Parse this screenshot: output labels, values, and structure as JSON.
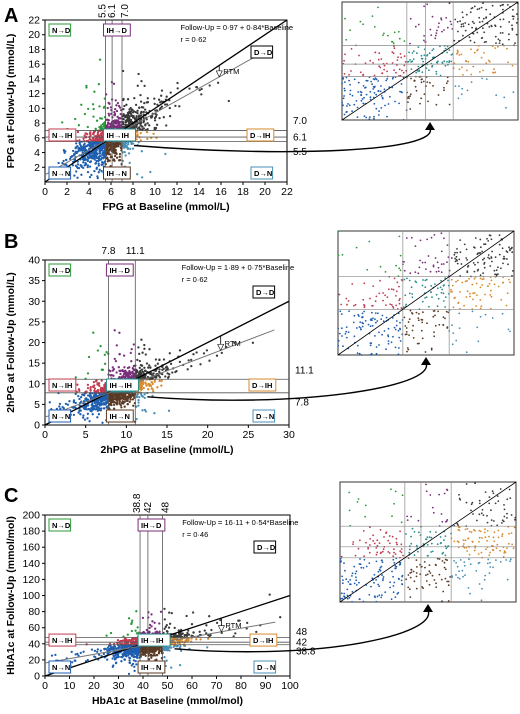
{
  "palette": {
    "N_N": "#1f5fb0",
    "N_IH": "#c23b50",
    "IH_IH": "#2a8c8c",
    "IH_N": "#5a3a25",
    "N_D": "#2b9a3a",
    "IH_D": "#7a2f7a",
    "D_IH": "#d88a2c",
    "D_N": "#4a8fb5",
    "D_D": "#3a3a3a"
  },
  "panels": [
    {
      "letter": "A",
      "equation": "Follow-Up = 0·97 + 0·84*Baseline",
      "r": "r = 0·62",
      "rtm": "RTM",
      "xlabel": "FPG at Baseline (mmol/L)",
      "ylabel": "FPG at Follow-Up (mmol/L)",
      "thresholds": [
        "5.5",
        "6.1",
        "7.0"
      ],
      "boxes": {
        "N_D": "N→D",
        "IH_D": "IH→D",
        "D_D": "D→D",
        "N_IH": "N→IH",
        "IH_IH": "IH→IH",
        "D_IH": "D→IH",
        "N_N": "N→N",
        "IH_N": "IH→N",
        "D_N": "D→N"
      }
    },
    {
      "letter": "B",
      "equation": "Follow-Up = 1·89 + 0·75*Baseline",
      "r": "r = 0·62",
      "rtm": "RTM",
      "xlabel": "2hPG at Baseline (mmol/L)",
      "ylabel": "2hPG at Follow-Up (mmol/L)",
      "thresholds": [
        "7.8",
        "11.1"
      ],
      "boxes": {
        "N_D": "N→D",
        "IH_D": "IH→D",
        "D_D": "D→D",
        "N_IH": "N→IH",
        "IH_IH": "IH→IH",
        "D_IH": "D→IH",
        "N_N": "N→N",
        "IH_N": "IH→N",
        "D_N": "D→N"
      }
    },
    {
      "letter": "C",
      "equation": "Follow-Up = 16·11 + 0·54*Baseline",
      "r": "r = 0·46",
      "rtm": "RTM",
      "xlabel": "HbA1c at Baseline (mmol/mol)",
      "ylabel": "HbA1c at Follow-Up (mmol/mol)",
      "thresholds": [
        "38.8",
        "42",
        "48"
      ],
      "boxes": {
        "N_D": "N→D",
        "IH_D": "IH→D",
        "D_D": "D→D",
        "N_IH": "N→IH",
        "IH_IH": "IH→IH",
        "D_IH": "D→IH",
        "N_N": "N→N",
        "IH_N": "IH→N",
        "D_N": "D→N"
      }
    }
  ],
  "chart_data": [
    {
      "type": "scatter",
      "title": "",
      "xlabel": "FPG at Baseline (mmol/L)",
      "ylabel": "FPG at Follow-Up (mmol/L)",
      "xlim": [
        0,
        22
      ],
      "ylim": [
        0,
        22
      ],
      "xticks": [
        0,
        2,
        4,
        6,
        8,
        10,
        12,
        14,
        16,
        18,
        20,
        22
      ],
      "yticks": [
        2,
        4,
        6,
        8,
        10,
        12,
        14,
        16,
        18,
        20,
        22
      ],
      "thresholds": [
        5.5,
        6.1,
        7.0
      ],
      "fit": {
        "intercept": 0.97,
        "slope": 0.84,
        "r": 0.62
      },
      "identity_line": true
    },
    {
      "type": "scatter",
      "title": "",
      "xlabel": "2hPG at Baseline (mmol/L)",
      "ylabel": "2hPG at Follow-Up (mmol/L)",
      "xlim": [
        0,
        30
      ],
      "ylim": [
        0,
        40
      ],
      "xticks": [
        0,
        5,
        10,
        15,
        20,
        25,
        30
      ],
      "yticks": [
        0,
        5,
        10,
        15,
        20,
        25,
        30,
        35,
        40
      ],
      "thresholds": [
        7.8,
        11.1
      ],
      "fit": {
        "intercept": 1.89,
        "slope": 0.75,
        "r": 0.62
      },
      "identity_line": true
    },
    {
      "type": "scatter",
      "title": "",
      "xlabel": "HbA1c at Baseline (mmol/mol)",
      "ylabel": "HbA1c at Follow-Up (mmol/mol)",
      "xlim": [
        0,
        100
      ],
      "ylim": [
        0,
        200
      ],
      "xticks": [
        0,
        10,
        20,
        30,
        40,
        50,
        60,
        70,
        80,
        90,
        100
      ],
      "yticks": [
        0,
        20,
        40,
        60,
        80,
        100,
        120,
        140,
        160,
        180,
        200
      ],
      "thresholds": [
        38.8,
        42,
        48
      ],
      "fit": {
        "intercept": 16.11,
        "slope": 0.54,
        "r": 0.46
      },
      "identity_line": true
    }
  ]
}
